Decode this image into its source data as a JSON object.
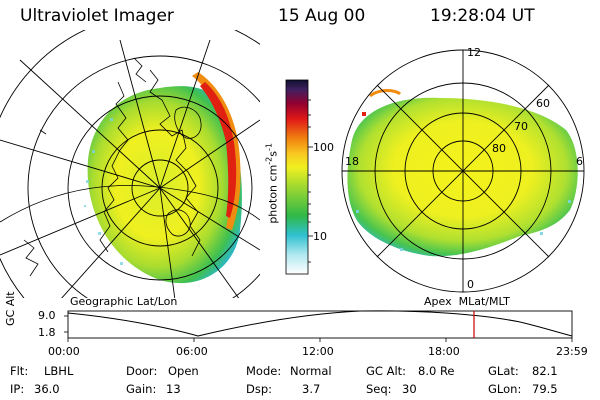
{
  "header": {
    "title": "Ultraviolet Imager",
    "date": "15 Aug 00",
    "time": "19:28:04 UT"
  },
  "colorbar": {
    "label": "photon cm",
    "label_sup1": "-2",
    "label_mid": "s",
    "label_sup2": "-1",
    "ticks": [
      "100",
      "10"
    ]
  },
  "geo_panel": {
    "caption": "Geographic Lat/Lon"
  },
  "apex_panel": {
    "caption": "Apex  MLat/MLT",
    "mlt_labels": [
      "12",
      "18",
      "6",
      "0"
    ],
    "lat_labels": [
      "60",
      "70",
      "80"
    ]
  },
  "altitude_plot": {
    "y_label": "GC Alt",
    "y_ticks": [
      "9.0",
      "1.8"
    ],
    "x_ticks": [
      "00:00",
      "06:00",
      "12:00",
      "18:00",
      "23:59"
    ],
    "current_marker_time": "19:28"
  },
  "info": {
    "flt_label": "Flt:",
    "flt_value": "LBHL",
    "ip_label": "IP:",
    "ip_value": "36.0",
    "door_label": "Door:",
    "door_value": "Open",
    "gain_label": "Gain:",
    "gain_value": "13",
    "mode_label": "Mode:",
    "mode_value": "Normal",
    "dsp_label": "Dsp:",
    "dsp_value": "3.7",
    "gcalt_label": "GC Alt:",
    "gcalt_value": "8.0 Re",
    "seq_label": "Seq:",
    "seq_value": "30",
    "glat_label": "GLat:",
    "glat_value": "82.1",
    "glon_label": "GLon:",
    "glon_value": "79.5"
  },
  "colors": {
    "marker": "#cc0000",
    "aurora_green": "#33c24a",
    "aurora_yellow": "#f2f21a",
    "aurora_red": "#e02010"
  }
}
